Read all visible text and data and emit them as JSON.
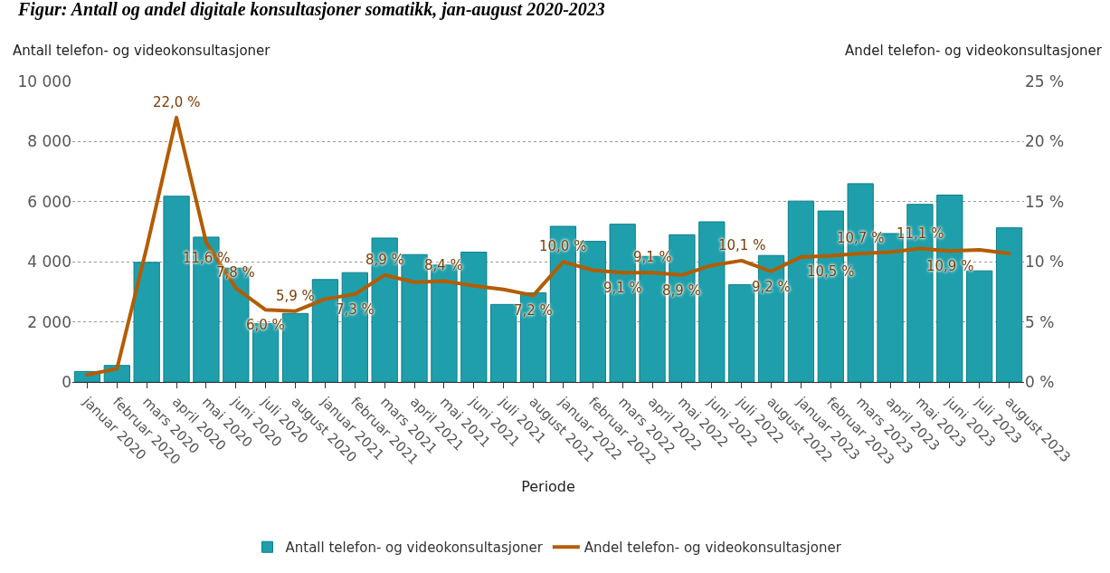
{
  "chart_data": {
    "type": "bar",
    "title": "Figur: Antall og andel digitale konsultasjoner somatikk, jan-august 2020-2023",
    "ylabel": "Antall telefon- og videokonsultasjoner",
    "y2label": "Andel telefon- og videokonsultasjoner",
    "xlabel": "Periode",
    "categories": [
      "januar 2020",
      "februar 2020",
      "mars 2020",
      "april 2020",
      "mai 2020",
      "juni 2020",
      "juli 2020",
      "august 2020",
      "januar 2021",
      "februar 2021",
      "mars 2021",
      "april 2021",
      "mai 2021",
      "juni 2021",
      "juli 2021",
      "august 2021",
      "januar 2022",
      "februar 2022",
      "mars 2022",
      "april 2022",
      "mai 2022",
      "juni 2022",
      "juli 2022",
      "august 2022",
      "januar 2023",
      "februar 2023",
      "mars 2023",
      "april 2023",
      "mai 2023",
      "juni 2023",
      "juli 2023",
      "august 2023"
    ],
    "series": [
      {
        "name": "Antall telefon- og videokonsultasjoner",
        "color": "#1f9fab",
        "values": [
          350,
          550,
          3980,
          6180,
          4820,
          3790,
          1940,
          2280,
          3410,
          3640,
          4790,
          4240,
          3890,
          4320,
          2580,
          2970,
          5180,
          4680,
          5250,
          4180,
          4900,
          5330,
          3240,
          4210,
          6020,
          5690,
          6600,
          4940,
          5910,
          6220,
          3700,
          5130
        ]
      },
      {
        "name": "Andel telefon- og videokonsultasjoner",
        "type": "line",
        "axis": "y2",
        "color": "#b35c00",
        "values": [
          0.6,
          1.1,
          11.2,
          22.0,
          11.6,
          7.8,
          6.0,
          5.9,
          6.9,
          7.3,
          8.9,
          8.3,
          8.4,
          8.0,
          7.7,
          7.2,
          10.0,
          9.3,
          9.1,
          9.1,
          8.9,
          9.7,
          10.1,
          9.2,
          10.4,
          10.5,
          10.7,
          10.8,
          11.1,
          10.9,
          11.0,
          10.7
        ],
        "value_labels": [
          null,
          null,
          null,
          "22,0 %",
          "11,6 %",
          "7,8 %",
          "6,0 %",
          "5,9 %",
          null,
          "7,3 %",
          "8,9 %",
          null,
          "8,4 %",
          null,
          null,
          "7,2 %",
          "10,0 %",
          null,
          "9,1 %",
          "9,1 %",
          "8,9 %",
          null,
          "10,1 %",
          "9,2 %",
          null,
          "10,5 %",
          "10,7 %",
          null,
          "11,1 %",
          "10,9 %",
          null,
          null
        ]
      }
    ],
    "ylim": [
      0,
      10000
    ],
    "yticks": [
      {
        "value": 0,
        "label": "0"
      },
      {
        "value": 2000,
        "label": "2 000"
      },
      {
        "value": 4000,
        "label": "4 000"
      },
      {
        "value": 6000,
        "label": "6 000"
      },
      {
        "value": 8000,
        "label": "8 000"
      },
      {
        "value": 10000,
        "label": "10 000"
      }
    ],
    "y2lim": [
      0,
      25
    ],
    "y2ticks": [
      {
        "value": 0,
        "label": "0 %"
      },
      {
        "value": 5,
        "label": "5 %"
      },
      {
        "value": 10,
        "label": "10 %"
      },
      {
        "value": 15,
        "label": "15 %"
      },
      {
        "value": 20,
        "label": "20 %"
      },
      {
        "value": 25,
        "label": "25 %"
      }
    ],
    "grid": "y",
    "legend": "bottom",
    "line_style": "solid",
    "marker": "none"
  }
}
